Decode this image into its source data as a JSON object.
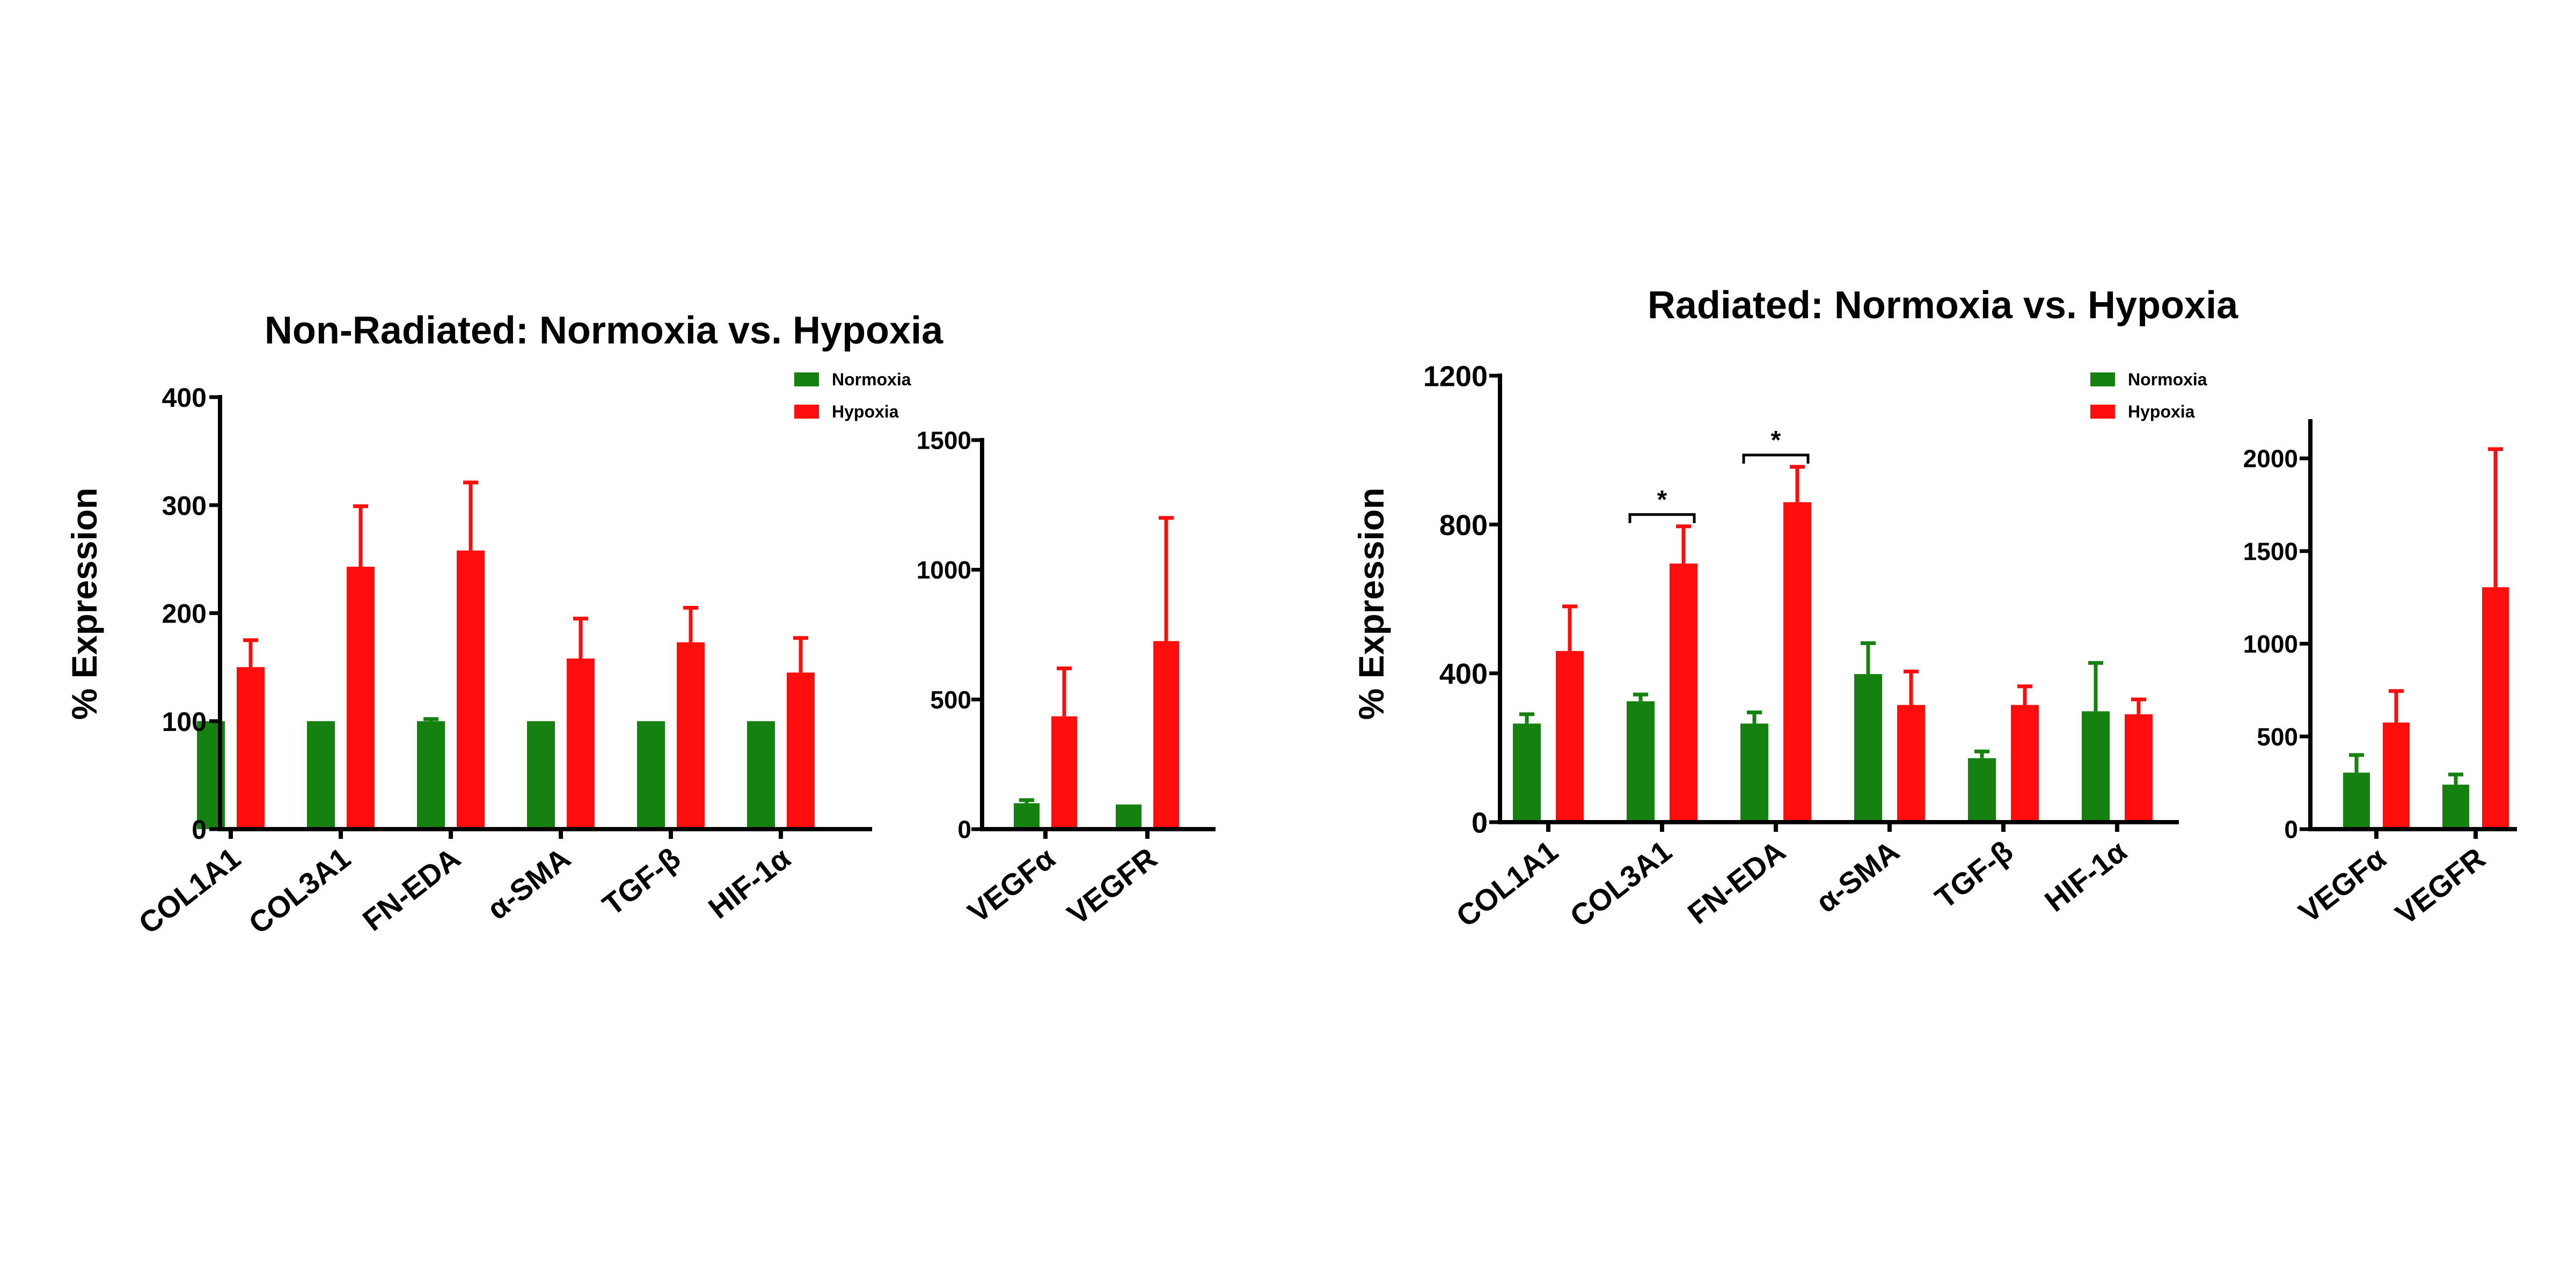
{
  "colors": {
    "normoxia": "#15820f",
    "hypoxia": "#ff0d0d",
    "axis": "#000000"
  },
  "chart_data": [
    {
      "type": "bar",
      "panel": "non-radiated-main",
      "title": "Non-Radiated: Normoxia vs. Hypoxia",
      "xlabel": "",
      "ylabel": "% Expression",
      "ylim": [
        0,
        400
      ],
      "yticks": [
        0,
        100,
        200,
        300,
        400
      ],
      "categories": [
        "COL1A1",
        "COL3A1",
        "FN-EDA",
        "α-SMA",
        "TGF-β",
        "HIF-1α"
      ],
      "series": [
        {
          "name": "Normoxia",
          "values": [
            100,
            100,
            100,
            100,
            100,
            100
          ],
          "errors": [
            0,
            0,
            2,
            0,
            0,
            0
          ]
        },
        {
          "name": "Hypoxia",
          "values": [
            150,
            243,
            258,
            158,
            173,
            145
          ],
          "errors": [
            25,
            56,
            63,
            37,
            32,
            32
          ]
        }
      ],
      "legend": {
        "position": "top-right",
        "entries": [
          "Normoxia",
          "Hypoxia"
        ]
      }
    },
    {
      "type": "bar",
      "panel": "non-radiated-vegf",
      "title": "",
      "xlabel": "",
      "ylabel": "",
      "ylim": [
        0,
        1500
      ],
      "yticks": [
        0,
        500,
        1000,
        1500
      ],
      "categories": [
        "VEGFα",
        "VEGFR"
      ],
      "series": [
        {
          "name": "Normoxia",
          "values": [
            100,
            95
          ],
          "errors": [
            12,
            0
          ]
        },
        {
          "name": "Hypoxia",
          "values": [
            435,
            725
          ],
          "errors": [
            185,
            475
          ]
        }
      ]
    },
    {
      "type": "bar",
      "panel": "radiated-main",
      "title": "Radiated: Normoxia vs. Hypoxia",
      "xlabel": "",
      "ylabel": "% Expression",
      "ylim": [
        0,
        1200
      ],
      "yticks": [
        0,
        400,
        800,
        1200
      ],
      "categories": [
        "COL1A1",
        "COL3A1",
        "FN-EDA",
        "α-SMA",
        "TGF-β",
        "HIF-1α"
      ],
      "series": [
        {
          "name": "Normoxia",
          "values": [
            265,
            325,
            265,
            398,
            172,
            298
          ],
          "errors": [
            25,
            18,
            30,
            83,
            18,
            130
          ]
        },
        {
          "name": "Hypoxia",
          "values": [
            460,
            695,
            860,
            315,
            315,
            290
          ],
          "errors": [
            120,
            100,
            95,
            90,
            50,
            40
          ]
        }
      ],
      "significance": [
        {
          "category": "COL3A1",
          "label": "*"
        },
        {
          "category": "FN-EDA",
          "label": "*"
        }
      ],
      "legend": {
        "position": "top-right",
        "entries": [
          "Normoxia",
          "Hypoxia"
        ]
      }
    },
    {
      "type": "bar",
      "panel": "radiated-vegf",
      "title": "",
      "xlabel": "",
      "ylabel": "",
      "ylim": [
        0,
        2200
      ],
      "yticks": [
        0,
        500,
        1000,
        1500,
        2000
      ],
      "categories": [
        "VEGFα",
        "VEGFR"
      ],
      "series": [
        {
          "name": "Normoxia",
          "values": [
            305,
            240
          ],
          "errors": [
            95,
            55
          ]
        },
        {
          "name": "Hypoxia",
          "values": [
            575,
            1305
          ],
          "errors": [
            170,
            745
          ]
        }
      ]
    }
  ]
}
